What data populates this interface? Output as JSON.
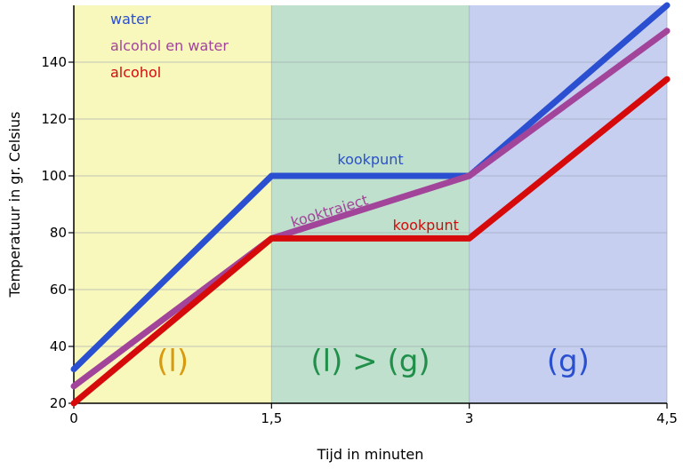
{
  "chart_data": {
    "type": "line",
    "xlabel": "Tijd in minuten",
    "ylabel": "Temperatuur in gr. Celsius",
    "xlim": [
      0,
      4.5
    ],
    "ylim": [
      20,
      160
    ],
    "x_ticks": [
      {
        "value": 0,
        "label": "0"
      },
      {
        "value": 1.5,
        "label": "1,5"
      },
      {
        "value": 3,
        "label": "3"
      },
      {
        "value": 4.5,
        "label": "4,5"
      }
    ],
    "y_ticks": [
      {
        "value": 20,
        "label": "20"
      },
      {
        "value": 40,
        "label": "40"
      },
      {
        "value": 60,
        "label": "60"
      },
      {
        "value": 80,
        "label": "80"
      },
      {
        "value": 100,
        "label": "100"
      },
      {
        "value": 120,
        "label": "120"
      },
      {
        "value": 140,
        "label": "140"
      }
    ],
    "grid": true,
    "legend_position": "top-left",
    "phases": [
      {
        "label": "(l)",
        "x_start": 0,
        "x_end": 1.5,
        "color": "#f8f8bc",
        "label_color": "#d89a10"
      },
      {
        "label": "(l) > (g)",
        "x_start": 1.5,
        "x_end": 3,
        "color": "#bfe0cc",
        "label_color": "#1f8f4a"
      },
      {
        "label": "(g)",
        "x_start": 3,
        "x_end": 4.5,
        "color": "#c6cff0",
        "label_color": "#2a50d0"
      }
    ],
    "series": [
      {
        "name": "water",
        "color": "#2a4fd0",
        "points": [
          [
            0,
            32
          ],
          [
            1.5,
            100
          ],
          [
            3,
            100
          ],
          [
            4.5,
            160
          ]
        ]
      },
      {
        "name": "alcohol en water",
        "color": "#a2449a",
        "points": [
          [
            0,
            26
          ],
          [
            1.5,
            78
          ],
          [
            3,
            100
          ],
          [
            4.5,
            151
          ]
        ]
      },
      {
        "name": "alcohol",
        "color": "#d60a0a",
        "points": [
          [
            0,
            20
          ],
          [
            1.5,
            78
          ],
          [
            3,
            78
          ],
          [
            4.5,
            134
          ]
        ]
      }
    ],
    "annotations": [
      {
        "text": "kookpunt",
        "color": "#2a4fd0",
        "x": 2.25,
        "y": 104,
        "rotate": 0
      },
      {
        "text": "kooktraject",
        "color": "#a2449a",
        "x": 1.95,
        "y": 86,
        "rotate": -17
      },
      {
        "text": "kookpunt",
        "color": "#d60a0a",
        "x": 2.67,
        "y": 81,
        "rotate": 0
      }
    ]
  }
}
